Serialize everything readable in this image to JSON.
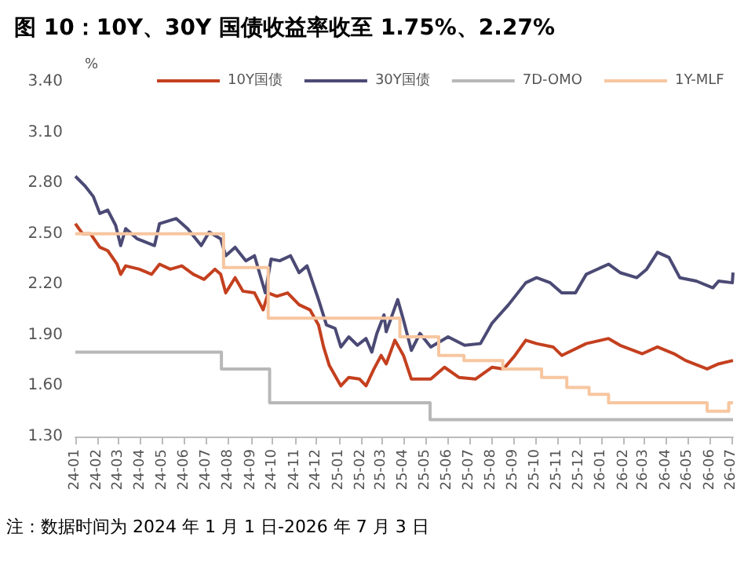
{
  "chart_data": {
    "type": "line",
    "title": "图 10：10Y、30Y 国债收益率收至 1.75%、2.27%",
    "ylabel": "%",
    "annotations": [
      "注：数据时间为 2024 年 1 月 1 日-2026 年 7 月 3 日"
    ],
    "legend": "top",
    "grid": false,
    "marker": "none",
    "line_style": "solid",
    "xlim": [
      "2024-01-01",
      "2026-07-03"
    ],
    "xticks": [
      {
        "value": "2024-01",
        "label": "24-01"
      },
      {
        "value": "2024-02",
        "label": "24-02"
      },
      {
        "value": "2024-03",
        "label": "24-03"
      },
      {
        "value": "2024-04",
        "label": "24-04"
      },
      {
        "value": "2024-05",
        "label": "24-05"
      },
      {
        "value": "2024-06",
        "label": "24-06"
      },
      {
        "value": "2024-07",
        "label": "24-07"
      },
      {
        "value": "2024-08",
        "label": "24-08"
      },
      {
        "value": "2024-09",
        "label": "24-09"
      },
      {
        "value": "2024-10",
        "label": "24-10"
      },
      {
        "value": "2024-11",
        "label": "24-11"
      },
      {
        "value": "2024-12",
        "label": "24-12"
      },
      {
        "value": "2025-01",
        "label": "25-01"
      },
      {
        "value": "2025-02",
        "label": "25-02"
      },
      {
        "value": "2025-03",
        "label": "25-03"
      },
      {
        "value": "2025-04",
        "label": "25-04"
      },
      {
        "value": "2025-05",
        "label": "25-05"
      },
      {
        "value": "2025-06",
        "label": "25-06"
      },
      {
        "value": "2025-07",
        "label": "25-07"
      },
      {
        "value": "2025-08",
        "label": "25-08"
      },
      {
        "value": "2025-09",
        "label": "25-09"
      },
      {
        "value": "2025-10",
        "label": "25-10"
      },
      {
        "value": "2025-11",
        "label": "25-11"
      },
      {
        "value": "2025-12",
        "label": "25-12"
      },
      {
        "value": "2026-01",
        "label": "26-01"
      },
      {
        "value": "2026-02",
        "label": "26-02"
      },
      {
        "value": "2026-03",
        "label": "26-03"
      },
      {
        "value": "2026-04",
        "label": "26-04"
      },
      {
        "value": "2026-05",
        "label": "26-05"
      },
      {
        "value": "2026-06",
        "label": "26-06"
      },
      {
        "value": "2026-07",
        "label": "26-07"
      }
    ],
    "ylim": [
      1.3,
      3.4
    ],
    "yticks": [
      {
        "value": 1.3,
        "label": "1.30"
      },
      {
        "value": 1.6,
        "label": "1.60"
      },
      {
        "value": 1.9,
        "label": "1.90"
      },
      {
        "value": 2.2,
        "label": "2.20"
      },
      {
        "value": 2.5,
        "label": "2.50"
      },
      {
        "value": 2.8,
        "label": "2.80"
      },
      {
        "value": 3.1,
        "label": "3.10"
      },
      {
        "value": 3.4,
        "label": "3.40"
      }
    ],
    "series": [
      {
        "name": "10Y国债",
        "color": "#c4401f",
        "x": [
          "2024-01-01",
          "2024-01-11",
          "2024-01-22",
          "2024-02-04",
          "2024-02-15",
          "2024-02-28",
          "2024-03-04",
          "2024-03-11",
          "2024-03-30",
          "2024-04-16",
          "2024-04-27",
          "2024-05-12",
          "2024-05-28",
          "2024-06-13",
          "2024-06-28",
          "2024-07-13",
          "2024-07-21",
          "2024-07-28",
          "2024-08-10",
          "2024-08-21",
          "2024-09-06",
          "2024-09-18",
          "2024-09-25",
          "2024-10-07",
          "2024-10-22",
          "2024-11-07",
          "2024-11-22",
          "2024-12-04",
          "2024-12-11",
          "2024-12-19",
          "2025-01-04",
          "2025-01-15",
          "2025-01-30",
          "2025-02-08",
          "2025-02-19",
          "2025-03-01",
          "2025-03-08",
          "2025-03-20",
          "2025-04-01",
          "2025-04-12",
          "2025-04-27",
          "2025-05-09",
          "2025-05-28",
          "2025-06-17",
          "2025-07-10",
          "2025-08-02",
          "2025-08-18",
          "2025-09-03",
          "2025-09-18",
          "2025-10-03",
          "2025-10-26",
          "2025-11-07",
          "2025-12-11",
          "2026-01-11",
          "2026-01-27",
          "2026-02-27",
          "2026-03-20",
          "2026-04-12",
          "2026-04-28",
          "2026-05-28",
          "2026-06-13",
          "2026-07-03"
        ],
        "values": [
          2.56,
          2.5,
          2.5,
          2.42,
          2.4,
          2.32,
          2.26,
          2.31,
          2.29,
          2.26,
          2.32,
          2.29,
          2.31,
          2.26,
          2.23,
          2.29,
          2.26,
          2.15,
          2.24,
          2.16,
          2.15,
          2.05,
          2.15,
          2.13,
          2.15,
          2.08,
          2.05,
          1.96,
          1.83,
          1.72,
          1.6,
          1.65,
          1.64,
          1.6,
          1.7,
          1.78,
          1.73,
          1.87,
          1.78,
          1.64,
          1.64,
          1.64,
          1.71,
          1.65,
          1.64,
          1.71,
          1.7,
          1.78,
          1.87,
          1.85,
          1.83,
          1.78,
          1.85,
          1.88,
          1.84,
          1.79,
          1.83,
          1.79,
          1.75,
          1.7,
          1.73,
          1.75
        ]
      },
      {
        "name": "30Y国债",
        "color": "#4b4a75",
        "x": [
          "2024-01-01",
          "2024-01-15",
          "2024-01-26",
          "2024-02-04",
          "2024-02-15",
          "2024-02-26",
          "2024-03-04",
          "2024-03-11",
          "2024-03-27",
          "2024-04-20",
          "2024-04-27",
          "2024-05-20",
          "2024-06-05",
          "2024-06-24",
          "2024-07-05",
          "2024-07-21",
          "2024-07-28",
          "2024-08-10",
          "2024-08-25",
          "2024-09-06",
          "2024-09-21",
          "2024-09-29",
          "2024-10-11",
          "2024-10-26",
          "2024-11-07",
          "2024-11-18",
          "2024-12-04",
          "2024-12-15",
          "2024-12-27",
          "2025-01-04",
          "2025-01-15",
          "2025-01-27",
          "2025-02-08",
          "2025-02-16",
          "2025-02-23",
          "2025-03-05",
          "2025-03-08",
          "2025-03-24",
          "2025-04-01",
          "2025-04-12",
          "2025-04-24",
          "2025-05-09",
          "2025-06-02",
          "2025-06-25",
          "2025-07-17",
          "2025-08-02",
          "2025-08-25",
          "2025-09-18",
          "2025-10-03",
          "2025-10-22",
          "2025-11-07",
          "2025-11-26",
          "2025-12-11",
          "2026-01-11",
          "2026-01-27",
          "2026-02-19",
          "2026-03-05",
          "2026-03-20",
          "2026-04-05",
          "2026-04-20",
          "2026-05-13",
          "2026-06-05",
          "2026-06-13",
          "2026-07-02",
          "2026-07-03"
        ],
        "values": [
          2.84,
          2.78,
          2.72,
          2.62,
          2.64,
          2.55,
          2.43,
          2.53,
          2.47,
          2.43,
          2.56,
          2.59,
          2.53,
          2.43,
          2.51,
          2.47,
          2.37,
          2.42,
          2.34,
          2.37,
          2.15,
          2.35,
          2.34,
          2.37,
          2.27,
          2.31,
          2.11,
          1.96,
          1.94,
          1.83,
          1.89,
          1.84,
          1.88,
          1.8,
          1.91,
          2.02,
          1.92,
          2.11,
          1.99,
          1.81,
          1.91,
          1.83,
          1.89,
          1.84,
          1.85,
          1.97,
          2.08,
          2.21,
          2.24,
          2.21,
          2.15,
          2.15,
          2.26,
          2.32,
          2.27,
          2.24,
          2.29,
          2.39,
          2.36,
          2.24,
          2.22,
          2.18,
          2.22,
          2.21,
          2.27
        ]
      },
      {
        "name": "7D-OMO",
        "type": "step",
        "color": "#b8b8b8",
        "x": [
          "2024-01-01",
          "2024-07-22",
          "2024-09-27",
          "2025-05-08",
          "2026-07-03"
        ],
        "values": [
          1.8,
          1.7,
          1.5,
          1.4,
          1.4
        ]
      },
      {
        "name": "1Y-MLF",
        "type": "step",
        "color": "#f7c6a0",
        "x": [
          "2024-01-01",
          "2024-07-25",
          "2024-09-25",
          "2025-03-27",
          "2025-05-20",
          "2025-06-24",
          "2025-08-17",
          "2025-10-10",
          "2025-11-14",
          "2025-12-15",
          "2026-01-11",
          "2026-05-28",
          "2026-06-27",
          "2026-07-03"
        ],
        "values": [
          2.5,
          2.3,
          2.0,
          1.89,
          1.78,
          1.75,
          1.7,
          1.65,
          1.59,
          1.55,
          1.5,
          1.45,
          1.5,
          1.5
        ]
      }
    ]
  }
}
